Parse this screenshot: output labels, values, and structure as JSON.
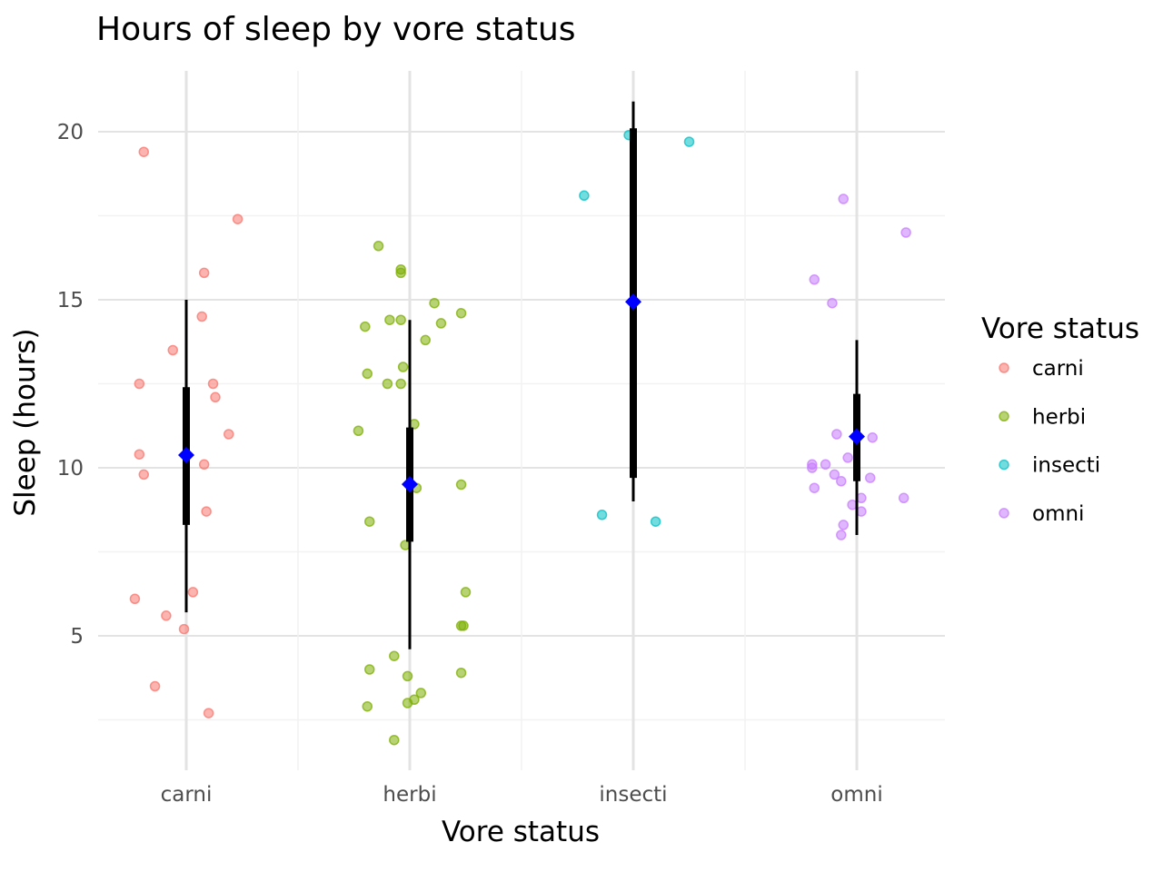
{
  "chart_data": {
    "type": "scatter",
    "title": "Hours of sleep by vore status",
    "xlabel": "Vore status",
    "ylabel": "Sleep (hours)",
    "categories": [
      "carni",
      "herbi",
      "insecti",
      "omni"
    ],
    "ylim": [
      1.0,
      21.8
    ],
    "yticks": [
      5,
      10,
      15,
      20
    ],
    "grid": true,
    "legend": {
      "title": "Vore status",
      "position": "right",
      "entries": [
        "carni",
        "herbi",
        "insecti",
        "omni"
      ]
    },
    "colors": {
      "carni": "#f8766d",
      "herbi": "#7cae00",
      "insecti": "#00bfc4",
      "omni": "#c77cff",
      "summary_point": "#0000ff",
      "interval": "#000000"
    },
    "series": [
      {
        "name": "carni",
        "points": [
          {
            "x": -0.19,
            "y": 19.4
          },
          {
            "x": 0.23,
            "y": 17.4
          },
          {
            "x": 0.08,
            "y": 15.8
          },
          {
            "x": 0.07,
            "y": 14.5
          },
          {
            "x": -0.06,
            "y": 13.5
          },
          {
            "x": -0.21,
            "y": 12.5
          },
          {
            "x": 0.12,
            "y": 12.5
          },
          {
            "x": 0.13,
            "y": 12.1
          },
          {
            "x": 0.19,
            "y": 11.0
          },
          {
            "x": -0.21,
            "y": 10.4
          },
          {
            "x": -0.19,
            "y": 9.8
          },
          {
            "x": 0.08,
            "y": 10.1
          },
          {
            "x": 0.09,
            "y": 8.7
          },
          {
            "x": -0.23,
            "y": 6.1
          },
          {
            "x": 0.03,
            "y": 6.3
          },
          {
            "x": -0.09,
            "y": 5.6
          },
          {
            "x": -0.01,
            "y": 5.2
          },
          {
            "x": -0.14,
            "y": 3.5
          },
          {
            "x": 0.1,
            "y": 2.7
          }
        ],
        "summary": {
          "mean": 10.38,
          "inner": [
            8.3,
            12.4
          ],
          "outer": [
            5.7,
            15.0
          ]
        }
      },
      {
        "name": "herbi",
        "points": [
          {
            "x": -0.14,
            "y": 16.6
          },
          {
            "x": -0.04,
            "y": 15.9
          },
          {
            "x": -0.04,
            "y": 15.8
          },
          {
            "x": 0.11,
            "y": 14.9
          },
          {
            "x": 0.23,
            "y": 14.6
          },
          {
            "x": -0.09,
            "y": 14.4
          },
          {
            "x": -0.04,
            "y": 14.4
          },
          {
            "x": 0.14,
            "y": 14.3
          },
          {
            "x": -0.2,
            "y": 14.2
          },
          {
            "x": 0.07,
            "y": 13.8
          },
          {
            "x": -0.03,
            "y": 13.0
          },
          {
            "x": -0.19,
            "y": 12.8
          },
          {
            "x": -0.1,
            "y": 12.5
          },
          {
            "x": -0.04,
            "y": 12.5
          },
          {
            "x": 0.02,
            "y": 11.3
          },
          {
            "x": -0.23,
            "y": 11.1
          },
          {
            "x": 0.23,
            "y": 9.5
          },
          {
            "x": 0.03,
            "y": 9.4
          },
          {
            "x": -0.18,
            "y": 8.4
          },
          {
            "x": -0.02,
            "y": 7.7
          },
          {
            "x": 0.25,
            "y": 6.3
          },
          {
            "x": 0.23,
            "y": 5.3
          },
          {
            "x": 0.24,
            "y": 5.3
          },
          {
            "x": -0.07,
            "y": 4.4
          },
          {
            "x": -0.18,
            "y": 4.0
          },
          {
            "x": 0.23,
            "y": 3.9
          },
          {
            "x": -0.01,
            "y": 3.8
          },
          {
            "x": 0.05,
            "y": 3.3
          },
          {
            "x": 0.02,
            "y": 3.1
          },
          {
            "x": -0.01,
            "y": 3.0
          },
          {
            "x": -0.19,
            "y": 2.9
          },
          {
            "x": -0.07,
            "y": 1.9
          }
        ],
        "summary": {
          "mean": 9.51,
          "inner": [
            7.8,
            11.2
          ],
          "outer": [
            4.6,
            14.4
          ]
        }
      },
      {
        "name": "insecti",
        "points": [
          {
            "x": -0.02,
            "y": 19.9
          },
          {
            "x": 0.25,
            "y": 19.7
          },
          {
            "x": -0.22,
            "y": 18.1
          },
          {
            "x": -0.14,
            "y": 8.6
          },
          {
            "x": 0.1,
            "y": 8.4
          }
        ],
        "summary": {
          "mean": 14.94,
          "inner": [
            9.7,
            20.1
          ],
          "outer": [
            9.0,
            20.9
          ]
        }
      },
      {
        "name": "omni",
        "points": [
          {
            "x": -0.06,
            "y": 18.0
          },
          {
            "x": 0.22,
            "y": 17.0
          },
          {
            "x": -0.19,
            "y": 15.6
          },
          {
            "x": -0.11,
            "y": 14.9
          },
          {
            "x": -0.09,
            "y": 11.0
          },
          {
            "x": 0.07,
            "y": 10.9
          },
          {
            "x": -0.04,
            "y": 10.3
          },
          {
            "x": -0.2,
            "y": 10.1
          },
          {
            "x": -0.14,
            "y": 10.1
          },
          {
            "x": -0.2,
            "y": 10.0
          },
          {
            "x": -0.1,
            "y": 9.8
          },
          {
            "x": 0.06,
            "y": 9.7
          },
          {
            "x": -0.07,
            "y": 9.6
          },
          {
            "x": -0.19,
            "y": 9.4
          },
          {
            "x": 0.21,
            "y": 9.1
          },
          {
            "x": 0.02,
            "y": 9.1
          },
          {
            "x": -0.02,
            "y": 8.9
          },
          {
            "x": 0.02,
            "y": 8.7
          },
          {
            "x": -0.06,
            "y": 8.3
          },
          {
            "x": -0.07,
            "y": 8.0
          }
        ],
        "summary": {
          "mean": 10.93,
          "inner": [
            9.6,
            12.2
          ],
          "outer": [
            8.0,
            13.8
          ]
        }
      }
    ]
  }
}
